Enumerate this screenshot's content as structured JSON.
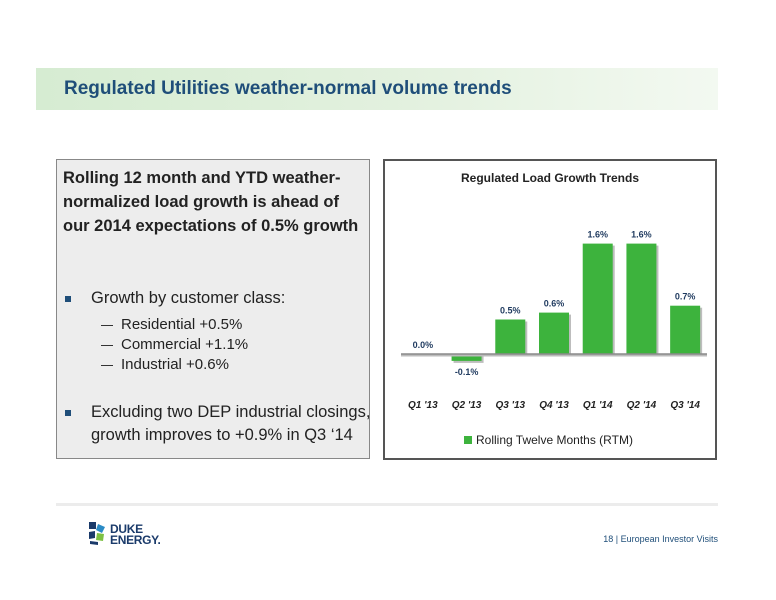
{
  "slide": {
    "title": "Regulated Utilities weather-normal volume trends"
  },
  "text_panel": {
    "headline": "Rolling 12 month and YTD weather-normalized load growth is ahead of our 2014 expectations of 0.5% growth",
    "bullet1": "Growth by customer class:",
    "sub_items": [
      "Residential +0.5%",
      "Commercial +1.1%",
      "Industrial +0.6%"
    ],
    "bullet2_line1": "Excluding two DEP industrial closings,",
    "bullet2_line2": "growth improves to +0.9%  in Q3 ‘14"
  },
  "chart_data": {
    "type": "bar",
    "title": "Regulated Load Growth Trends",
    "categories": [
      "Q1 '13",
      "Q2 '13",
      "Q3 '13",
      "Q4 '13",
      "Q1 '14",
      "Q2 '14",
      "Q3 '14"
    ],
    "series": [
      {
        "name": "Rolling Twelve Months (RTM)",
        "values": [
          0.0,
          -0.1,
          0.5,
          0.6,
          1.6,
          1.6,
          0.7
        ],
        "color": "#3db33d"
      }
    ],
    "data_labels": [
      "0.0%",
      "-0.1%",
      "0.5%",
      "0.6%",
      "1.6%",
      "1.6%",
      "0.7%"
    ],
    "ylim": [
      -0.2,
      1.7
    ],
    "legend": "bottom",
    "grid": false
  },
  "footer": {
    "logo_line1": "DUKE",
    "logo_line2": "ENERGY.",
    "page_number": "18",
    "page_label": "| European Investor Visits"
  }
}
